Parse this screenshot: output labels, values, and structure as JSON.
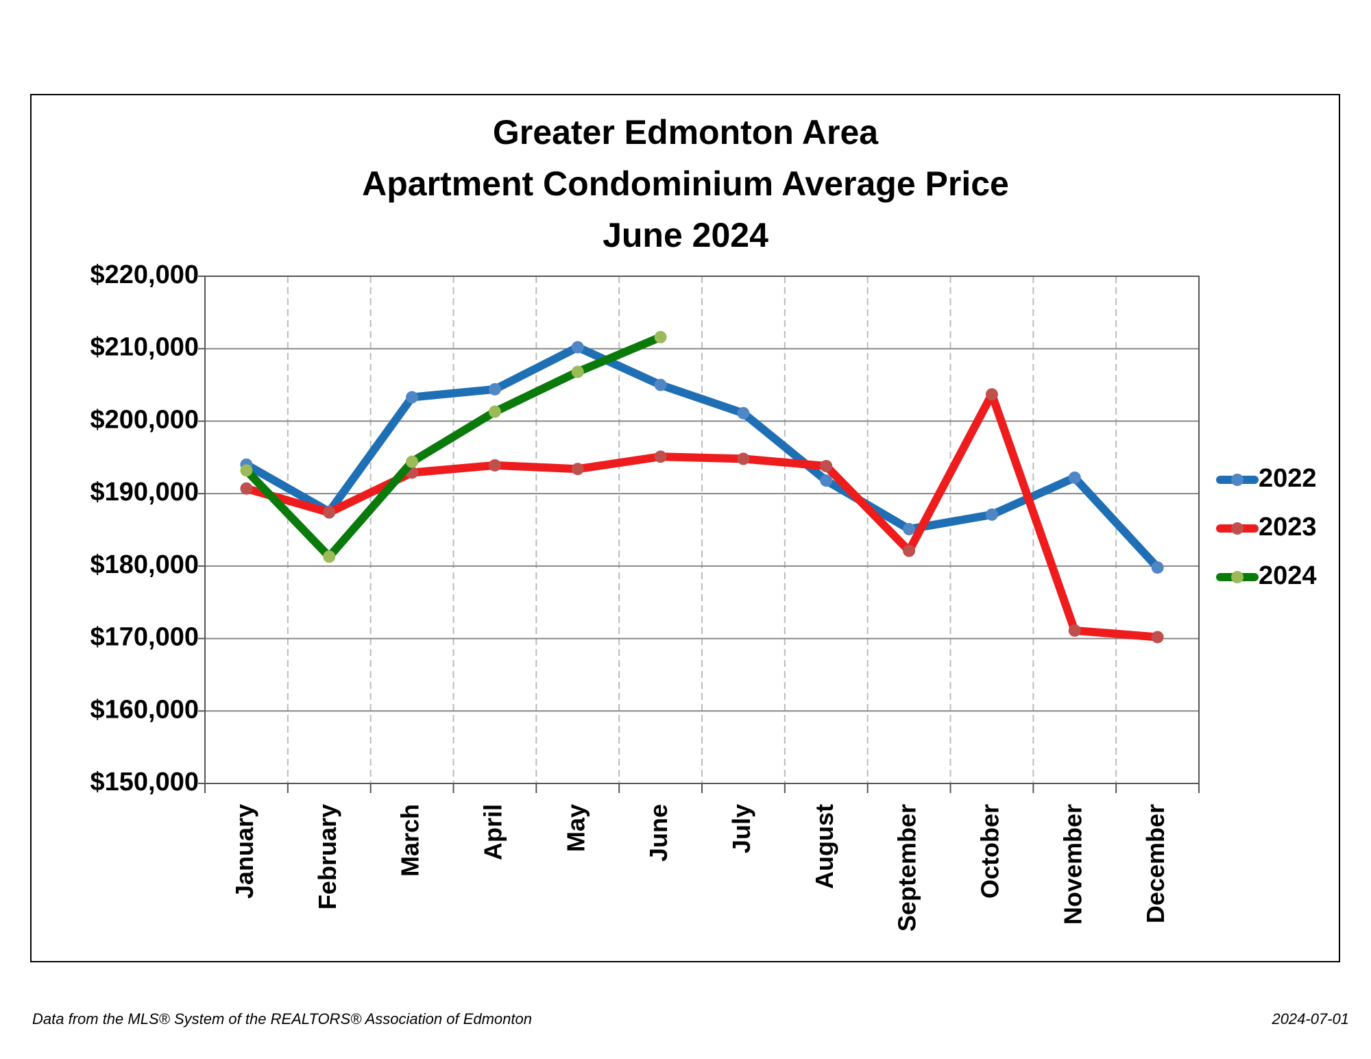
{
  "chart_data": {
    "type": "line",
    "title": [
      "Greater Edmonton Area",
      "Apartment Condominium Average Price",
      "June 2024"
    ],
    "categories": [
      "January",
      "February",
      "March",
      "April",
      "May",
      "June",
      "July",
      "August",
      "September",
      "October",
      "November",
      "December"
    ],
    "series": [
      {
        "name": "2022",
        "color": "#1f6fb5",
        "marker_color": "#4f86c6",
        "values": [
          194000,
          187500,
          203300,
          204400,
          210200,
          205000,
          201100,
          191800,
          185100,
          187100,
          192200,
          179800
        ]
      },
      {
        "name": "2023",
        "color": "#ee1c1c",
        "marker_color": "#c0504d",
        "values": [
          190700,
          187400,
          192900,
          193900,
          193400,
          195100,
          194800,
          193800,
          182100,
          203700,
          171100,
          170200
        ]
      },
      {
        "name": "2024",
        "color": "#0a7a0a",
        "marker_color": "#9bbb59",
        "values": [
          193200,
          181300,
          194400,
          201300,
          206800,
          211600,
          null,
          null,
          null,
          null,
          null,
          null
        ]
      }
    ],
    "ylim": [
      150000,
      220000
    ],
    "yticks": [
      {
        "value": 150000,
        "label": "$150,000"
      },
      {
        "value": 160000,
        "label": "$160,000"
      },
      {
        "value": 170000,
        "label": "$170,000"
      },
      {
        "value": 180000,
        "label": "$180,000"
      },
      {
        "value": 190000,
        "label": "$190,000"
      },
      {
        "value": 200000,
        "label": "$200,000"
      },
      {
        "value": 210000,
        "label": "$210,000"
      },
      {
        "value": 220000,
        "label": "$220,000"
      }
    ],
    "grid": true,
    "legend": "right",
    "footer_left": "Data from the MLS® System of the REALTORS® Association of Edmonton",
    "footer_right": "2024-07-01"
  }
}
